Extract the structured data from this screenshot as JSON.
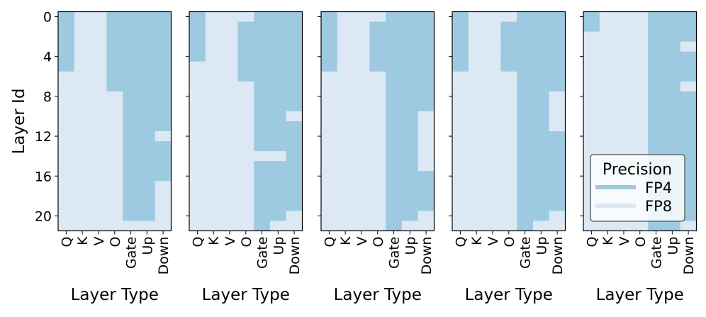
{
  "chart_data": {
    "type": "heatmap",
    "ylabel": "Layer Id",
    "xlabel": "Layer Type",
    "x_categories": [
      "Q",
      "K",
      "V",
      "O",
      "Gate",
      "Up",
      "Down"
    ],
    "y_ticks": [
      "0",
      "4",
      "8",
      "12",
      "16",
      "20"
    ],
    "num_layers": 22,
    "legend": {
      "title": "Precision",
      "position": "lower-right of last panel",
      "entries": [
        {
          "label": "FP4",
          "value": 1,
          "color": "#9ecae1"
        },
        {
          "label": "FP8",
          "value": 0,
          "color": "#dde8f5"
        }
      ]
    },
    "colors": {
      "FP4": "#9ecae1",
      "FP8": "#dde8f5"
    },
    "panels": [
      {
        "matrix": [
          [
            1,
            0,
            0,
            1,
            1,
            1,
            1
          ],
          [
            1,
            0,
            0,
            1,
            1,
            1,
            1
          ],
          [
            1,
            0,
            0,
            1,
            1,
            1,
            1
          ],
          [
            1,
            0,
            0,
            1,
            1,
            1,
            1
          ],
          [
            1,
            0,
            0,
            1,
            1,
            1,
            1
          ],
          [
            1,
            0,
            0,
            1,
            1,
            1,
            1
          ],
          [
            0,
            0,
            0,
            1,
            1,
            1,
            1
          ],
          [
            0,
            0,
            0,
            1,
            1,
            1,
            1
          ],
          [
            0,
            0,
            0,
            0,
            1,
            1,
            1
          ],
          [
            0,
            0,
            0,
            0,
            1,
            1,
            1
          ],
          [
            0,
            0,
            0,
            0,
            1,
            1,
            1
          ],
          [
            0,
            0,
            0,
            0,
            1,
            1,
            1
          ],
          [
            0,
            0,
            0,
            0,
            1,
            1,
            0
          ],
          [
            0,
            0,
            0,
            0,
            1,
            1,
            1
          ],
          [
            0,
            0,
            0,
            0,
            1,
            1,
            1
          ],
          [
            0,
            0,
            0,
            0,
            1,
            1,
            1
          ],
          [
            0,
            0,
            0,
            0,
            1,
            1,
            1
          ],
          [
            0,
            0,
            0,
            0,
            1,
            1,
            0
          ],
          [
            0,
            0,
            0,
            0,
            1,
            1,
            0
          ],
          [
            0,
            0,
            0,
            0,
            1,
            1,
            0
          ],
          [
            0,
            0,
            0,
            0,
            1,
            1,
            0
          ],
          [
            0,
            0,
            0,
            0,
            0,
            0,
            0
          ]
        ]
      },
      {
        "matrix": [
          [
            1,
            0,
            0,
            0,
            1,
            1,
            1
          ],
          [
            1,
            0,
            0,
            1,
            1,
            1,
            1
          ],
          [
            1,
            0,
            0,
            1,
            1,
            1,
            1
          ],
          [
            1,
            0,
            0,
            1,
            1,
            1,
            1
          ],
          [
            1,
            0,
            0,
            1,
            1,
            1,
            1
          ],
          [
            0,
            0,
            0,
            1,
            1,
            1,
            1
          ],
          [
            0,
            0,
            0,
            1,
            1,
            1,
            1
          ],
          [
            0,
            0,
            0,
            0,
            1,
            1,
            1
          ],
          [
            0,
            0,
            0,
            0,
            1,
            1,
            1
          ],
          [
            0,
            0,
            0,
            0,
            1,
            1,
            1
          ],
          [
            0,
            0,
            0,
            0,
            1,
            1,
            0
          ],
          [
            0,
            0,
            0,
            0,
            1,
            1,
            1
          ],
          [
            0,
            0,
            0,
            0,
            1,
            1,
            1
          ],
          [
            0,
            0,
            0,
            0,
            1,
            1,
            1
          ],
          [
            0,
            0,
            0,
            0,
            0,
            0,
            1
          ],
          [
            0,
            0,
            0,
            0,
            1,
            1,
            1
          ],
          [
            0,
            0,
            0,
            0,
            1,
            1,
            1
          ],
          [
            0,
            0,
            0,
            0,
            1,
            1,
            1
          ],
          [
            0,
            0,
            0,
            0,
            1,
            1,
            1
          ],
          [
            0,
            0,
            0,
            0,
            1,
            1,
            1
          ],
          [
            0,
            0,
            0,
            0,
            1,
            1,
            0
          ],
          [
            0,
            0,
            0,
            0,
            1,
            0,
            0
          ]
        ]
      },
      {
        "matrix": [
          [
            1,
            0,
            0,
            0,
            1,
            1,
            1
          ],
          [
            1,
            0,
            0,
            1,
            1,
            1,
            1
          ],
          [
            1,
            0,
            0,
            1,
            1,
            1,
            1
          ],
          [
            1,
            0,
            0,
            1,
            1,
            1,
            1
          ],
          [
            1,
            0,
            0,
            1,
            1,
            1,
            1
          ],
          [
            1,
            0,
            0,
            1,
            1,
            1,
            1
          ],
          [
            0,
            0,
            0,
            0,
            1,
            1,
            1
          ],
          [
            0,
            0,
            0,
            0,
            1,
            1,
            1
          ],
          [
            0,
            0,
            0,
            0,
            1,
            1,
            1
          ],
          [
            0,
            0,
            0,
            0,
            1,
            1,
            1
          ],
          [
            0,
            0,
            0,
            0,
            1,
            1,
            0
          ],
          [
            0,
            0,
            0,
            0,
            1,
            1,
            0
          ],
          [
            0,
            0,
            0,
            0,
            1,
            1,
            0
          ],
          [
            0,
            0,
            0,
            0,
            1,
            1,
            0
          ],
          [
            0,
            0,
            0,
            0,
            1,
            1,
            0
          ],
          [
            0,
            0,
            0,
            0,
            1,
            1,
            0
          ],
          [
            0,
            0,
            0,
            0,
            1,
            1,
            1
          ],
          [
            0,
            0,
            0,
            0,
            1,
            1,
            1
          ],
          [
            0,
            0,
            0,
            0,
            1,
            1,
            1
          ],
          [
            0,
            0,
            0,
            0,
            1,
            1,
            1
          ],
          [
            0,
            0,
            0,
            0,
            1,
            1,
            0
          ],
          [
            0,
            0,
            0,
            0,
            1,
            0,
            0
          ]
        ]
      },
      {
        "matrix": [
          [
            1,
            0,
            0,
            0,
            1,
            1,
            1
          ],
          [
            1,
            0,
            0,
            1,
            1,
            1,
            1
          ],
          [
            1,
            0,
            0,
            1,
            1,
            1,
            1
          ],
          [
            1,
            0,
            0,
            1,
            1,
            1,
            1
          ],
          [
            1,
            0,
            0,
            1,
            1,
            1,
            1
          ],
          [
            1,
            0,
            0,
            1,
            1,
            1,
            1
          ],
          [
            0,
            0,
            0,
            0,
            1,
            1,
            1
          ],
          [
            0,
            0,
            0,
            0,
            1,
            1,
            1
          ],
          [
            0,
            0,
            0,
            0,
            1,
            1,
            0
          ],
          [
            0,
            0,
            0,
            0,
            1,
            1,
            0
          ],
          [
            0,
            0,
            0,
            0,
            1,
            1,
            0
          ],
          [
            0,
            0,
            0,
            0,
            1,
            1,
            0
          ],
          [
            0,
            0,
            0,
            0,
            1,
            1,
            1
          ],
          [
            0,
            0,
            0,
            0,
            1,
            1,
            1
          ],
          [
            0,
            0,
            0,
            0,
            1,
            1,
            1
          ],
          [
            0,
            0,
            0,
            0,
            1,
            1,
            1
          ],
          [
            0,
            0,
            0,
            0,
            1,
            1,
            1
          ],
          [
            0,
            0,
            0,
            0,
            1,
            1,
            1
          ],
          [
            0,
            0,
            0,
            0,
            1,
            1,
            1
          ],
          [
            0,
            0,
            0,
            0,
            1,
            1,
            1
          ],
          [
            0,
            0,
            0,
            0,
            1,
            1,
            0
          ],
          [
            0,
            0,
            0,
            0,
            1,
            0,
            0
          ]
        ]
      },
      {
        "matrix": [
          [
            1,
            0,
            0,
            0,
            1,
            1,
            1
          ],
          [
            1,
            0,
            0,
            0,
            1,
            1,
            1
          ],
          [
            0,
            0,
            0,
            0,
            1,
            1,
            1
          ],
          [
            0,
            0,
            0,
            0,
            1,
            1,
            0
          ],
          [
            0,
            0,
            0,
            0,
            1,
            1,
            1
          ],
          [
            0,
            0,
            0,
            0,
            1,
            1,
            1
          ],
          [
            0,
            0,
            0,
            0,
            1,
            1,
            1
          ],
          [
            0,
            0,
            0,
            0,
            1,
            1,
            0
          ],
          [
            0,
            0,
            0,
            0,
            1,
            1,
            1
          ],
          [
            0,
            0,
            0,
            0,
            1,
            1,
            1
          ],
          [
            0,
            0,
            0,
            0,
            1,
            1,
            1
          ],
          [
            0,
            0,
            0,
            0,
            1,
            1,
            1
          ],
          [
            0,
            0,
            0,
            0,
            1,
            1,
            1
          ],
          [
            0,
            0,
            0,
            0,
            1,
            1,
            1
          ],
          [
            0,
            0,
            0,
            0,
            1,
            1,
            1
          ],
          [
            0,
            0,
            0,
            0,
            1,
            1,
            1
          ],
          [
            0,
            0,
            0,
            0,
            1,
            1,
            1
          ],
          [
            0,
            0,
            0,
            0,
            1,
            1,
            1
          ],
          [
            0,
            0,
            0,
            0,
            1,
            1,
            1
          ],
          [
            0,
            0,
            0,
            0,
            1,
            1,
            1
          ],
          [
            0,
            0,
            0,
            0,
            1,
            1,
            1
          ],
          [
            0,
            0,
            0,
            0,
            1,
            1,
            0
          ]
        ]
      }
    ]
  }
}
